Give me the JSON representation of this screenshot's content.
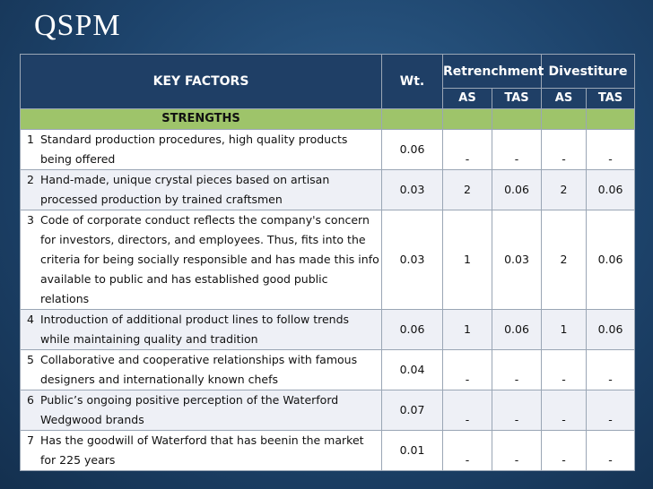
{
  "title": "QSPM",
  "header": {
    "key_factors": "KEY FACTORS",
    "weight": "Wt.",
    "strategy1": "Retrenchment",
    "strategy2": "Divestiture",
    "as": "AS",
    "tas": "TAS"
  },
  "section": "STRENGTHS",
  "rows": [
    {
      "num": "1",
      "text": "Standard production procedures, high quality products being offered",
      "wt": "0.06",
      "as1": "-",
      "tas1": "-",
      "as2": "-",
      "tas2": "-"
    },
    {
      "num": "2",
      "text": "Hand-made, unique crystal pieces based on artisan processed production by trained craftsmen",
      "wt": "0.03",
      "as1": "2",
      "tas1": "0.06",
      "as2": "2",
      "tas2": "0.06"
    },
    {
      "num": "3",
      "text": "Code of corporate conduct reflects the company's concern for investors, directors, and employees. Thus, fits into the criteria for being socially responsible and has made this info available to public and has established good public relations",
      "wt": "0.03",
      "as1": "1",
      "tas1": "0.03",
      "as2": "2",
      "tas2": "0.06"
    },
    {
      "num": "4",
      "text": "Introduction of additional product lines to follow trends while maintaining quality and tradition",
      "wt": "0.06",
      "as1": "1",
      "tas1": "0.06",
      "as2": "1",
      "tas2": "0.06"
    },
    {
      "num": "5",
      "text": "Collaborative and cooperative relationships with famous designers and internationally known chefs",
      "wt": "0.04",
      "as1": "-",
      "tas1": "-",
      "as2": "-",
      "tas2": "-"
    },
    {
      "num": "6",
      "text": "Public’s ongoing positive perception of the Waterford Wedgwood brands",
      "wt": "0.07",
      "as1": "-",
      "tas1": "-",
      "as2": "-",
      "tas2": "-"
    },
    {
      "num": "7",
      "text": "Has the goodwill of Waterford that has beenin the market for 225 years",
      "wt": "0.01",
      "as1": "-",
      "tas1": "-",
      "as2": "-",
      "tas2": "-"
    }
  ]
}
